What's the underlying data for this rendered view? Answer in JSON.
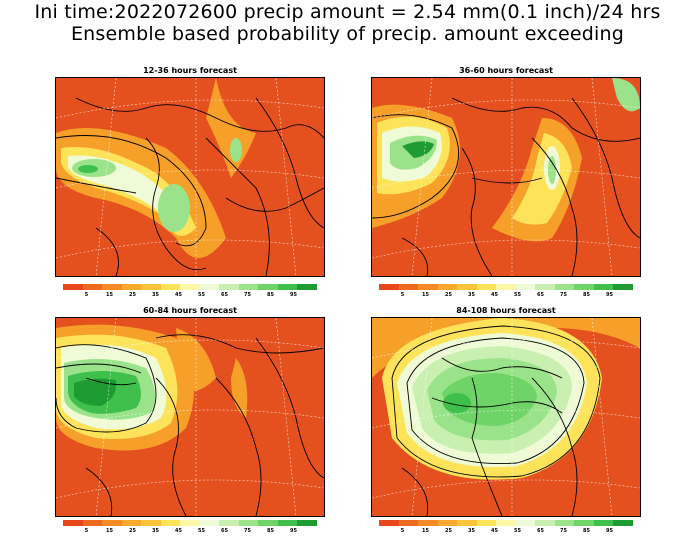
{
  "header": {
    "line1": "Ini time:2022072600 precip amount = 2.54 mm(0.1 inch)/24 hrs",
    "line2": "Ensemble based probability of precip. amount exceeding"
  },
  "panels": [
    {
      "title": "12-36 hours forecast"
    },
    {
      "title": "36-60 hours forecast"
    },
    {
      "title": "60-84 hours forecast"
    },
    {
      "title": "84-108 hours forecast"
    }
  ],
  "colorbar": {
    "colors": [
      "#e8471c",
      "#ef6a21",
      "#f68a26",
      "#f9a92e",
      "#fcc43b",
      "#fde35a",
      "#fdf7a8",
      "#eefbd6",
      "#c9f0b0",
      "#9ae38a",
      "#6fd468",
      "#3fbf4c",
      "#1e9b33"
    ],
    "labels": [
      "5",
      "15",
      "25",
      "35",
      "45",
      "55",
      "65",
      "75",
      "85",
      "95"
    ]
  }
}
